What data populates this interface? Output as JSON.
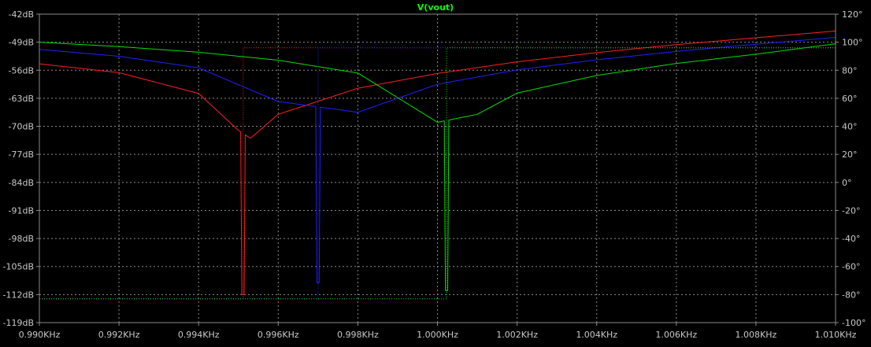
{
  "window": {
    "background": "#000000",
    "grid_color": "#8a8a8a",
    "frame_color": "#8a8a8a",
    "text_color": "#c8c8c8"
  },
  "chart_data": {
    "type": "line",
    "title": "V(vout)",
    "title_color": "#00ff00",
    "grid": true,
    "x_unit": "KHz",
    "xlim": [
      0.99,
      1.01
    ],
    "x_ticks": [
      "0.990KHz",
      "0.992KHz",
      "0.994KHz",
      "0.996KHz",
      "0.998KHz",
      "1.000KHz",
      "1.002KHz",
      "1.004KHz",
      "1.006KHz",
      "1.008KHz",
      "1.010KHz"
    ],
    "ylim_left": [
      -119,
      -42
    ],
    "y_ticks_left": [
      "-42dB",
      "-49dB",
      "-56dB",
      "-63dB",
      "-70dB",
      "-77dB",
      "-84dB",
      "-91dB",
      "-98dB",
      "-105dB",
      "-112dB",
      "-119dB"
    ],
    "ylim_right": [
      -100,
      120
    ],
    "y_ticks_right": [
      "120°",
      "100°",
      "80°",
      "60°",
      "40°",
      "20°",
      "0°",
      "-20°",
      "-40°",
      "-60°",
      "-80°",
      "-100°"
    ],
    "series": [
      {
        "color": "#ff2020",
        "kind": "magnitude",
        "axis": "left",
        "notch_freq": 0.99512,
        "notch_depth": -112,
        "points": [
          [
            0.99,
            -54.4
          ],
          [
            0.992,
            -56.6
          ],
          [
            0.994,
            -61.8
          ],
          [
            0.995,
            -71.0
          ],
          [
            0.99512,
            -112
          ],
          [
            0.9953,
            -73.0
          ],
          [
            0.996,
            -67.0
          ],
          [
            0.998,
            -60.5
          ],
          [
            1.0,
            -56.8
          ],
          [
            1.002,
            -53.9
          ],
          [
            1.004,
            -51.6
          ],
          [
            1.006,
            -49.6
          ],
          [
            1.008,
            -47.9
          ],
          [
            1.01,
            -46.2
          ]
        ]
      },
      {
        "color": "#2020ff",
        "kind": "magnitude",
        "axis": "left",
        "notch_freq": 0.997,
        "notch_depth": -109,
        "points": [
          [
            0.99,
            -50.8
          ],
          [
            0.992,
            -52.5
          ],
          [
            0.994,
            -55.4
          ],
          [
            0.996,
            -63.8
          ],
          [
            0.997,
            -109
          ],
          [
            0.998,
            -66.5
          ],
          [
            1.0,
            -59.5
          ],
          [
            1.002,
            -55.9
          ],
          [
            1.004,
            -53.4
          ],
          [
            1.006,
            -51.3
          ],
          [
            1.008,
            -49.5
          ],
          [
            1.01,
            -47.8
          ]
        ]
      },
      {
        "color": "#00e000",
        "kind": "magnitude",
        "axis": "left",
        "notch_freq": 1.00023,
        "notch_depth": -111,
        "points": [
          [
            0.99,
            -49.0
          ],
          [
            0.992,
            -50.1
          ],
          [
            0.994,
            -51.5
          ],
          [
            0.996,
            -53.5
          ],
          [
            0.998,
            -56.7
          ],
          [
            1.0,
            -69.0
          ],
          [
            1.00023,
            -111
          ],
          [
            1.001,
            -67.0
          ],
          [
            1.002,
            -61.7
          ],
          [
            1.004,
            -57.3
          ],
          [
            1.006,
            -54.3
          ],
          [
            1.008,
            -52.0
          ],
          [
            1.01,
            -49.4
          ]
        ]
      },
      {
        "color": "#ff2020",
        "kind": "phase",
        "axis": "right",
        "step_freq": 0.99512,
        "low": -83,
        "high": 96
      },
      {
        "color": "#2020ff",
        "kind": "phase",
        "axis": "right",
        "step_freq": 0.997,
        "low": -83,
        "high": 96
      },
      {
        "color": "#00e000",
        "kind": "phase",
        "axis": "right",
        "step_freq": 1.00023,
        "low": -83,
        "high": 96
      }
    ]
  }
}
